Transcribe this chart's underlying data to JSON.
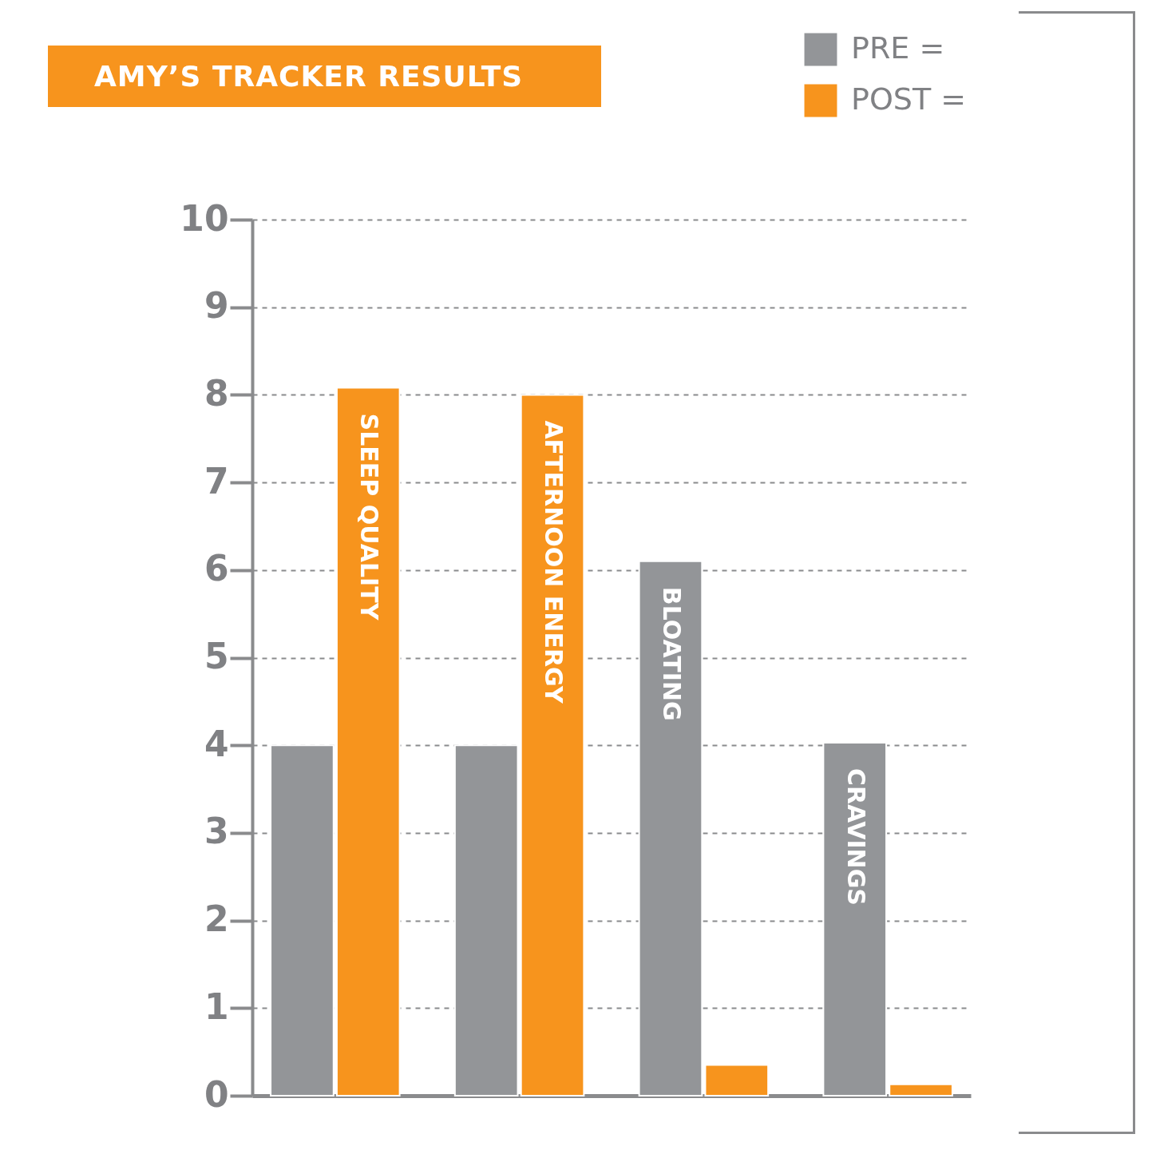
{
  "chart_data": {
    "type": "bar",
    "title": "AMY’S TRACKER RESULTS",
    "categories": [
      "SLEEP QUALITY",
      "AFTERNOON ENERGY",
      "BLOATING",
      "CRAVINGS"
    ],
    "series": [
      {
        "name": "PRE =",
        "color": "#939598",
        "values": [
          4,
          4,
          6.1,
          4.03
        ]
      },
      {
        "name": "POST =",
        "color": "#f7941d",
        "values": [
          8.08,
          8,
          0.35,
          0.13
        ]
      }
    ],
    "ylim": [
      0,
      10
    ],
    "yticks": [
      0,
      1,
      2,
      3,
      4,
      5,
      6,
      7,
      8,
      9,
      10
    ],
    "grid": "y",
    "legend": "top right",
    "tick_labels": "y"
  }
}
